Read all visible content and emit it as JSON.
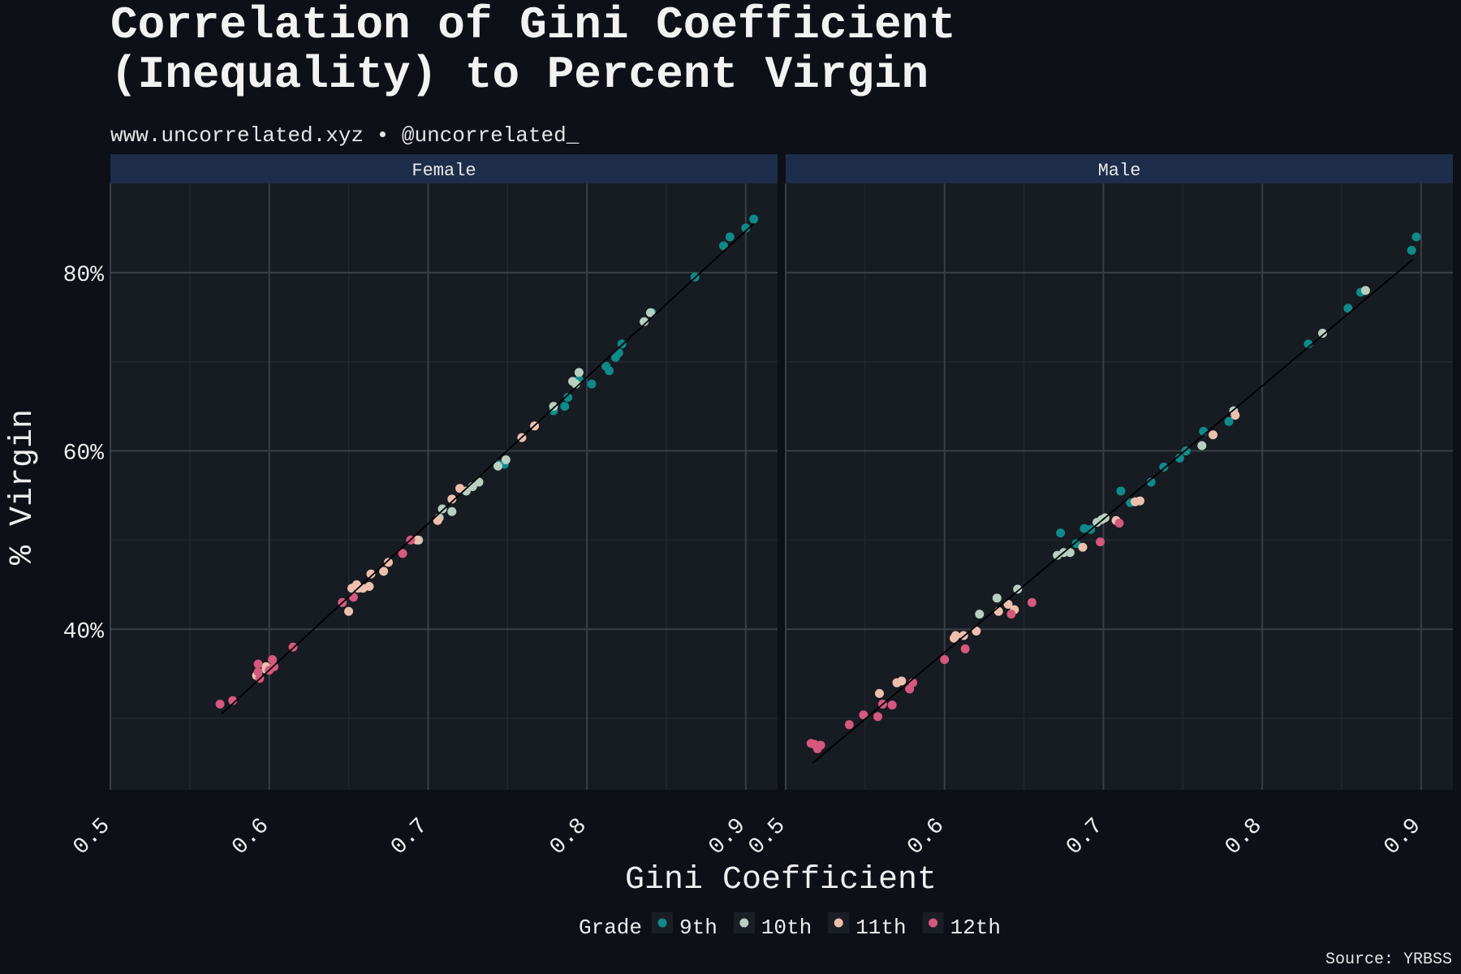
{
  "title_line1": "Correlation of Gini Coefficient",
  "title_line2": "(Inequality) to Percent Virgin",
  "subtitle": "www.uncorrelated.xyz • @uncorrelated_",
  "caption": "Source: YRBSS",
  "colors": {
    "background": "#0d1017",
    "panel": "#171b22",
    "strip": "#1e2d4a",
    "grid_major": "#3a3f47",
    "grid_minor": "#23272e",
    "trend_line": "#000000"
  },
  "chart_data": {
    "type": "scatter",
    "xlabel": "Gini Coefficient",
    "ylabel": "% Virgin",
    "xlim": [
      0.5,
      0.92
    ],
    "ylim": [
      22,
      90
    ],
    "x_ticks": [
      0.5,
      0.6,
      0.7,
      0.8,
      0.9
    ],
    "x_tick_labels": [
      "0.5",
      "0.6",
      "0.7",
      "0.8",
      "0.9"
    ],
    "y_ticks": [
      40,
      60,
      80
    ],
    "y_tick_labels": [
      "40%",
      "60%",
      "80%"
    ],
    "grid": true,
    "legend": {
      "title": "Grade",
      "position": "bottom",
      "items": [
        {
          "label": "9th",
          "color": "#0e8a8a"
        },
        {
          "label": "10th",
          "color": "#b8cfbf"
        },
        {
          "label": "11th",
          "color": "#ecc0ad"
        },
        {
          "label": "12th",
          "color": "#d5587f"
        }
      ]
    },
    "panels": [
      {
        "label": "Female",
        "trend": [
          [
            0.57,
            30.5
          ],
          [
            0.905,
            85.5
          ]
        ],
        "series": [
          {
            "name": "9th",
            "points": [
              [
                0.905,
                86
              ],
              [
                0.9,
                85
              ],
              [
                0.89,
                84
              ],
              [
                0.886,
                83
              ],
              [
                0.868,
                79.5
              ],
              [
                0.841,
                75.5
              ],
              [
                0.822,
                72
              ],
              [
                0.82,
                71
              ],
              [
                0.818,
                70.5
              ],
              [
                0.814,
                69
              ],
              [
                0.812,
                69.5
              ],
              [
                0.803,
                67.5
              ],
              [
                0.795,
                68
              ],
              [
                0.788,
                66
              ],
              [
                0.786,
                65
              ],
              [
                0.779,
                64.5
              ],
              [
                0.748,
                58.5
              ],
              [
                0.744,
                58.5
              ],
              [
                0.728,
                56
              ]
            ]
          },
          {
            "name": "10th",
            "points": [
              [
                0.836,
                74.5
              ],
              [
                0.84,
                75.5
              ],
              [
                0.795,
                68.8
              ],
              [
                0.793,
                67.5
              ],
              [
                0.791,
                67.8
              ],
              [
                0.779,
                65
              ],
              [
                0.749,
                59
              ],
              [
                0.744,
                58.3
              ],
              [
                0.732,
                56.5
              ],
              [
                0.728,
                56
              ],
              [
                0.724,
                55.5
              ],
              [
                0.715,
                53.2
              ],
              [
                0.709,
                53.5
              ],
              [
                0.707,
                52.5
              ],
              [
                0.694,
                50
              ],
              [
                0.598,
                35.5
              ]
            ]
          },
          {
            "name": "11th",
            "points": [
              [
                0.767,
                62.8
              ],
              [
                0.759,
                61.5
              ],
              [
                0.72,
                55.8
              ],
              [
                0.715,
                54.6
              ],
              [
                0.706,
                52.2
              ],
              [
                0.693,
                50
              ],
              [
                0.675,
                47.5
              ],
              [
                0.672,
                46.5
              ],
              [
                0.664,
                46.2
              ],
              [
                0.663,
                44.8
              ],
              [
                0.659,
                44.6
              ],
              [
                0.656,
                44.6
              ],
              [
                0.655,
                45
              ],
              [
                0.652,
                44.6
              ],
              [
                0.65,
                42
              ],
              [
                0.598,
                35.8
              ],
              [
                0.592,
                34.8
              ]
            ]
          },
          {
            "name": "12th",
            "points": [
              [
                0.689,
                50
              ],
              [
                0.684,
                48.5
              ],
              [
                0.653,
                43.6
              ],
              [
                0.646,
                43
              ],
              [
                0.615,
                38
              ],
              [
                0.603,
                35.8
              ],
              [
                0.602,
                36.6
              ],
              [
                0.6,
                35.4
              ],
              [
                0.593,
                36.1
              ],
              [
                0.593,
                35.2
              ],
              [
                0.594,
                34.5
              ],
              [
                0.577,
                32
              ],
              [
                0.569,
                31.6
              ]
            ]
          }
        ]
      },
      {
        "label": "Male",
        "trend": [
          [
            0.517,
            25
          ],
          [
            0.895,
            81.5
          ]
        ],
        "series": [
          {
            "name": "9th",
            "points": [
              [
                0.897,
                84
              ],
              [
                0.894,
                82.5
              ],
              [
                0.862,
                77.8
              ],
              [
                0.854,
                76
              ],
              [
                0.829,
                72
              ],
              [
                0.779,
                63.3
              ],
              [
                0.763,
                62.2
              ],
              [
                0.752,
                60
              ],
              [
                0.748,
                59.2
              ],
              [
                0.738,
                58.2
              ],
              [
                0.73,
                56.5
              ],
              [
                0.717,
                54.2
              ],
              [
                0.711,
                55.5
              ],
              [
                0.692,
                51.2
              ],
              [
                0.688,
                51.3
              ],
              [
                0.683,
                49.6
              ],
              [
                0.673,
                50.8
              ]
            ]
          },
          {
            "name": "10th",
            "points": [
              [
                0.865,
                78
              ],
              [
                0.838,
                73.2
              ],
              [
                0.782,
                64.5
              ],
              [
                0.762,
                60.6
              ],
              [
                0.701,
                52.5
              ],
              [
                0.699,
                52.3
              ],
              [
                0.696,
                52
              ],
              [
                0.679,
                48.6
              ],
              [
                0.675,
                48.6
              ],
              [
                0.671,
                48.3
              ],
              [
                0.646,
                44.5
              ],
              [
                0.633,
                43.5
              ],
              [
                0.622,
                41.7
              ]
            ]
          },
          {
            "name": "11th",
            "points": [
              [
                0.783,
                64
              ],
              [
                0.769,
                61.8
              ],
              [
                0.723,
                54.4
              ],
              [
                0.72,
                54.3
              ],
              [
                0.708,
                52.2
              ],
              [
                0.687,
                49.2
              ],
              [
                0.644,
                42.2
              ],
              [
                0.64,
                42.8
              ],
              [
                0.634,
                42
              ],
              [
                0.62,
                39.8
              ],
              [
                0.612,
                39.3
              ],
              [
                0.607,
                39.3
              ],
              [
                0.606,
                39
              ],
              [
                0.573,
                34.2
              ],
              [
                0.57,
                34
              ],
              [
                0.559,
                32.8
              ]
            ]
          },
          {
            "name": "12th",
            "points": [
              [
                0.71,
                51.9
              ],
              [
                0.698,
                49.8
              ],
              [
                0.655,
                43
              ],
              [
                0.642,
                41.7
              ],
              [
                0.613,
                37.8
              ],
              [
                0.6,
                36.6
              ],
              [
                0.58,
                34
              ],
              [
                0.578,
                33.3
              ],
              [
                0.567,
                31.5
              ],
              [
                0.561,
                31.6
              ],
              [
                0.558,
                30.2
              ],
              [
                0.549,
                30.4
              ],
              [
                0.54,
                29.3
              ],
              [
                0.522,
                27
              ],
              [
                0.518,
                27.1
              ],
              [
                0.52,
                26.6
              ],
              [
                0.516,
                27.2
              ]
            ]
          }
        ]
      }
    ]
  }
}
